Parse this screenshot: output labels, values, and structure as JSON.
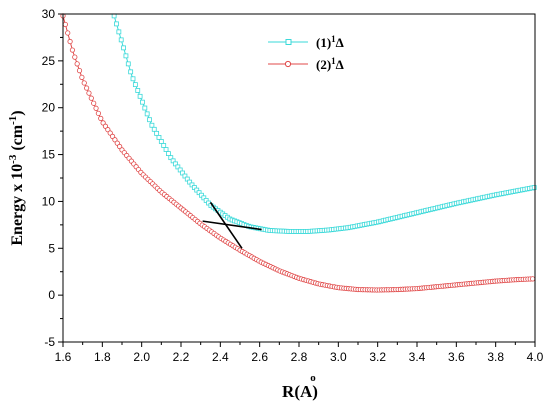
{
  "chart_data": {
    "type": "scatter",
    "xlabel": "R(Å)",
    "xlabel_main": "R(",
    "xlabel_unit": "A",
    "xlabel_ring": "o",
    "xlabel_close": ")",
    "ylabel": "Energy x 10^-3 (cm^-1)",
    "ylabel_parts": [
      "Energy x 10",
      "-3",
      " (cm",
      "-1",
      ")"
    ],
    "xlim": [
      1.6,
      4.0
    ],
    "ylim": [
      -5,
      30
    ],
    "xticks": [
      "1.6",
      "1.8",
      "2.0",
      "2.2",
      "2.4",
      "2.6",
      "2.8",
      "3.0",
      "3.2",
      "3.4",
      "3.6",
      "3.8",
      "4.0"
    ],
    "yticks": [
      "-5",
      "0",
      "5",
      "10",
      "15",
      "20",
      "25",
      "30"
    ],
    "legend_position": "top-right",
    "series": [
      {
        "name": "(1)1Δ",
        "name_parts": [
          "(1)",
          "1",
          "Δ"
        ],
        "color": "#3ad9d9",
        "marker": "square",
        "x": [
          1.86,
          1.95,
          2.05,
          2.15,
          2.25,
          2.35,
          2.45,
          2.55,
          2.65,
          2.75,
          2.85,
          2.95,
          3.05,
          3.2,
          3.4,
          3.6,
          3.8,
          4.0
        ],
        "y": [
          29.8,
          23.4,
          18.2,
          14.6,
          11.9,
          9.6,
          8.1,
          7.3,
          6.9,
          6.8,
          6.8,
          6.95,
          7.2,
          7.8,
          8.8,
          9.8,
          10.7,
          11.5
        ]
      },
      {
        "name": "(2)1Δ",
        "name_parts": [
          "(2)",
          "1",
          "Δ"
        ],
        "color": "#e04848",
        "marker": "circle",
        "x": [
          1.6,
          1.65,
          1.7,
          1.8,
          1.9,
          2.0,
          2.1,
          2.2,
          2.3,
          2.4,
          2.5,
          2.6,
          2.7,
          2.8,
          2.9,
          3.0,
          3.1,
          3.2,
          3.3,
          3.4,
          3.5,
          3.6,
          3.7,
          3.8,
          3.9,
          4.0
        ],
        "y": [
          29.8,
          26.0,
          23.0,
          18.5,
          15.5,
          13.0,
          11.0,
          9.3,
          7.6,
          6.1,
          4.8,
          3.6,
          2.6,
          1.8,
          1.2,
          0.8,
          0.6,
          0.55,
          0.6,
          0.7,
          0.9,
          1.1,
          1.3,
          1.5,
          1.65,
          1.75
        ]
      }
    ],
    "annotations": [
      {
        "type": "line",
        "x": [
          2.35,
          2.51
        ],
        "y": [
          9.9,
          5.0
        ],
        "color": "#000000"
      },
      {
        "type": "line",
        "x": [
          2.31,
          2.61
        ],
        "y": [
          7.9,
          7.0
        ],
        "color": "#000000"
      }
    ]
  }
}
